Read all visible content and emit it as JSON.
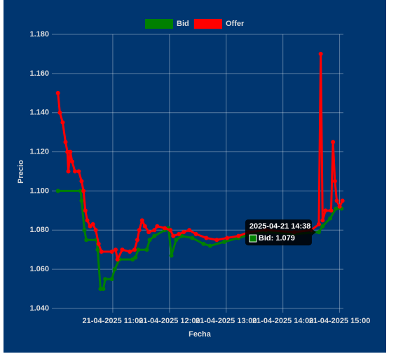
{
  "chart_data": {
    "type": "line",
    "xlabel": "Fecha",
    "ylabel": "Precio",
    "xlim": [
      "2025-04-21 10:00",
      "2025-04-21 15:04"
    ],
    "xticks": [
      {
        "value": "2025-04-21 11:00",
        "label": "21-04-2025 11:00"
      },
      {
        "value": "2025-04-21 12:00",
        "label": "21-04-2025 12:00"
      },
      {
        "value": "2025-04-21 13:00",
        "label": "21-04-2025 13:00"
      },
      {
        "value": "2025-04-21 14:00",
        "label": "21-04-2025 14:00"
      },
      {
        "value": "2025-04-21 15:00",
        "label": "21-04-2025 15:00"
      }
    ],
    "ylim": [
      1.04,
      1.18
    ],
    "yticks": [
      {
        "value": 1.04,
        "label": "1.040"
      },
      {
        "value": 1.06,
        "label": "1.060"
      },
      {
        "value": 1.08,
        "label": "1.080"
      },
      {
        "value": 1.1,
        "label": "1.100"
      },
      {
        "value": 1.12,
        "label": "1.120"
      },
      {
        "value": 1.14,
        "label": "1.140"
      },
      {
        "value": 1.16,
        "label": "1.160"
      },
      {
        "value": 1.18,
        "label": "1.180"
      }
    ],
    "grid": true,
    "legend": "top",
    "series": [
      {
        "name": "Bid",
        "color": "#008000",
        "x": [
          "2025-04-21 10:02",
          "2025-04-21 10:26",
          "2025-04-21 10:27",
          "2025-04-21 10:30",
          "2025-04-21 10:32",
          "2025-04-21 10:43",
          "2025-04-21 10:44",
          "2025-04-21 10:47",
          "2025-04-21 10:50",
          "2025-04-21 10:52",
          "2025-04-21 10:59",
          "2025-04-21 11:02",
          "2025-04-21 11:07",
          "2025-04-21 11:21",
          "2025-04-21 11:24",
          "2025-04-21 11:27",
          "2025-04-21 11:36",
          "2025-04-21 11:39",
          "2025-04-21 11:44",
          "2025-04-21 11:55",
          "2025-04-21 11:59",
          "2025-04-21 12:02",
          "2025-04-21 12:07",
          "2025-04-21 12:13",
          "2025-04-21 12:24",
          "2025-04-21 12:36",
          "2025-04-21 12:43",
          "2025-04-21 12:58",
          "2025-04-21 13:13",
          "2025-04-21 13:27",
          "2025-04-21 13:42",
          "2025-04-21 14:12",
          "2025-04-21 14:38",
          "2025-04-21 14:42",
          "2025-04-21 14:50",
          "2025-04-21 14:56",
          "2025-04-21 15:02"
        ],
        "values": [
          1.1,
          1.1,
          1.095,
          1.08,
          1.075,
          1.075,
          1.07,
          1.05,
          1.05,
          1.055,
          1.055,
          1.06,
          1.065,
          1.065,
          1.066,
          1.07,
          1.07,
          1.075,
          1.077,
          1.08,
          1.081,
          1.067,
          1.075,
          1.077,
          1.076,
          1.073,
          1.072,
          1.074,
          1.076,
          1.078,
          1.079,
          1.078,
          1.079,
          1.082,
          1.086,
          1.091,
          1.091
        ]
      },
      {
        "name": "Offer",
        "color": "#ff0000",
        "x": [
          "2025-04-21 10:02",
          "2025-04-21 10:04",
          "2025-04-21 10:07",
          "2025-04-21 10:10",
          "2025-04-21 10:12",
          "2025-04-21 10:13",
          "2025-04-21 10:15",
          "2025-04-21 10:17",
          "2025-04-21 10:20",
          "2025-04-21 10:24",
          "2025-04-21 10:27",
          "2025-04-21 10:29",
          "2025-04-21 10:31",
          "2025-04-21 10:33",
          "2025-04-21 10:36",
          "2025-04-21 10:39",
          "2025-04-21 10:42",
          "2025-04-21 10:45",
          "2025-04-21 10:48",
          "2025-04-21 10:59",
          "2025-04-21 11:03",
          "2025-04-21 11:05",
          "2025-04-21 11:10",
          "2025-04-21 11:18",
          "2025-04-21 11:23",
          "2025-04-21 11:26",
          "2025-04-21 11:28",
          "2025-04-21 11:31",
          "2025-04-21 11:34",
          "2025-04-21 11:38",
          "2025-04-21 11:44",
          "2025-04-21 11:47",
          "2025-04-21 11:55",
          "2025-04-21 12:01",
          "2025-04-21 12:04",
          "2025-04-21 12:10",
          "2025-04-21 12:15",
          "2025-04-21 12:21",
          "2025-04-21 12:28",
          "2025-04-21 12:39",
          "2025-04-21 12:50",
          "2025-04-21 13:01",
          "2025-04-21 13:13",
          "2025-04-21 13:24",
          "2025-04-21 13:42",
          "2025-04-21 14:12",
          "2025-04-21 14:30",
          "2025-04-21 14:38",
          "2025-04-21 14:40",
          "2025-04-21 14:42",
          "2025-04-21 14:45",
          "2025-04-21 14:51",
          "2025-04-21 14:53",
          "2025-04-21 14:55",
          "2025-04-21 14:57",
          "2025-04-21 15:00",
          "2025-04-21 15:03"
        ],
        "values": [
          1.15,
          1.14,
          1.135,
          1.125,
          1.12,
          1.11,
          1.12,
          1.115,
          1.11,
          1.11,
          1.105,
          1.1,
          1.09,
          1.085,
          1.082,
          1.083,
          1.08,
          1.073,
          1.069,
          1.069,
          1.07,
          1.065,
          1.07,
          1.069,
          1.07,
          1.075,
          1.08,
          1.085,
          1.082,
          1.079,
          1.08,
          1.082,
          1.081,
          1.08,
          1.077,
          1.078,
          1.079,
          1.08,
          1.078,
          1.076,
          1.075,
          1.076,
          1.077,
          1.079,
          1.08,
          1.079,
          1.08,
          1.083,
          1.17,
          1.085,
          1.09,
          1.09,
          1.125,
          1.105,
          1.095,
          1.092,
          1.095
        ]
      }
    ],
    "tooltip": {
      "title": "2025-04-21 14:38",
      "label": "Bid: 1.079"
    }
  }
}
